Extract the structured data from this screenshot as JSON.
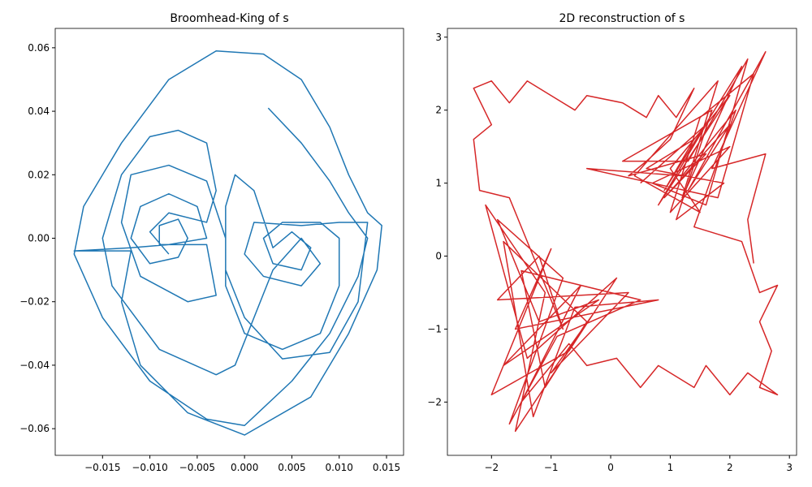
{
  "chart_data": [
    {
      "type": "line",
      "title": "Broomhead-King of s",
      "color": "#1f77b4",
      "grid": false,
      "xlim": [
        -0.02,
        0.0168
      ],
      "ylim": [
        -0.0684,
        0.0661
      ],
      "xticks": [
        {
          "value": -0.015,
          "label": "−0.015"
        },
        {
          "value": -0.01,
          "label": "−0.010"
        },
        {
          "value": -0.005,
          "label": "−0.005"
        },
        {
          "value": 0,
          "label": "0.000"
        },
        {
          "value": 0.005,
          "label": "0.005"
        },
        {
          "value": 0.01,
          "label": "0.010"
        },
        {
          "value": 0.015,
          "label": "0.015"
        }
      ],
      "yticks": [
        {
          "value": -0.06,
          "label": "−0.06"
        },
        {
          "value": -0.04,
          "label": "−0.04"
        },
        {
          "value": -0.02,
          "label": "−0.02"
        },
        {
          "value": 0,
          "label": "0.00"
        },
        {
          "value": 0.02,
          "label": "0.02"
        },
        {
          "value": 0.04,
          "label": "0.04"
        },
        {
          "value": 0.06,
          "label": "0.06"
        }
      ],
      "x": [
        0.0025,
        0.006,
        0.009,
        0.011,
        0.013,
        0.012,
        0.009,
        0.005,
        0.0,
        -0.004,
        -0.01,
        -0.015,
        -0.018,
        -0.017,
        -0.013,
        -0.008,
        -0.003,
        0.002,
        0.006,
        0.009,
        0.011,
        0.013,
        0.0145,
        0.014,
        0.011,
        0.007,
        0.0,
        -0.006,
        -0.011,
        -0.013,
        -0.012,
        -0.018,
        -0.012,
        -0.008,
        -0.004,
        -0.005,
        -0.008,
        -0.011,
        -0.012,
        -0.01,
        -0.007,
        -0.006,
        -0.007,
        -0.009,
        -0.009,
        -0.004,
        -0.003,
        -0.006,
        -0.011,
        -0.013,
        -0.012,
        -0.008,
        -0.004,
        -0.002,
        -0.002,
        0.0,
        0.004,
        0.008,
        0.01,
        0.01,
        0.008,
        0.004,
        0.002,
        0.003,
        0.006,
        0.007,
        0.005,
        0.003,
        0.001,
        -0.001,
        -0.002,
        -0.002,
        0.0,
        0.004,
        0.009,
        0.012,
        0.013,
        0.01,
        0.006,
        0.001,
        0.0,
        0.002,
        0.006,
        0.008,
        0.006,
        0.003,
        -0.001,
        -0.003,
        -0.009,
        -0.014,
        -0.015,
        -0.013,
        -0.01,
        -0.007,
        -0.004,
        -0.003,
        -0.004,
        -0.008,
        -0.01,
        -0.008
      ],
      "values": [
        0.041,
        0.03,
        0.018,
        0.008,
        0.0,
        -0.012,
        -0.03,
        -0.045,
        -0.059,
        -0.057,
        -0.045,
        -0.025,
        -0.005,
        0.01,
        0.03,
        0.05,
        0.059,
        0.058,
        0.05,
        0.035,
        0.02,
        0.008,
        0.004,
        -0.01,
        -0.03,
        -0.05,
        -0.062,
        -0.055,
        -0.04,
        -0.02,
        -0.004,
        -0.004,
        -0.003,
        -0.002,
        0.0,
        0.01,
        0.014,
        0.01,
        0.0,
        -0.008,
        -0.006,
        0.0,
        0.006,
        0.004,
        -0.002,
        -0.002,
        -0.018,
        -0.02,
        -0.012,
        0.005,
        0.02,
        0.023,
        0.018,
        0.0,
        -0.015,
        -0.03,
        -0.035,
        -0.03,
        -0.015,
        0.0,
        0.005,
        0.005,
        0.0,
        -0.008,
        -0.01,
        -0.003,
        0.002,
        -0.003,
        0.015,
        0.02,
        0.01,
        -0.01,
        -0.025,
        -0.038,
        -0.036,
        -0.02,
        0.005,
        0.005,
        0.004,
        0.005,
        -0.005,
        -0.012,
        -0.015,
        -0.008,
        0.0,
        -0.01,
        -0.04,
        -0.043,
        -0.035,
        -0.015,
        0.0,
        0.02,
        0.032,
        0.034,
        0.03,
        0.015,
        0.005,
        0.008,
        0.002,
        -0.005
      ]
    },
    {
      "type": "line",
      "title": "2D reconstruction of s",
      "color": "#d62728",
      "grid": false,
      "xlim": [
        -2.74,
        3.12
      ],
      "ylim": [
        -2.73,
        3.12
      ],
      "xticks": [
        {
          "value": -2,
          "label": "−2"
        },
        {
          "value": -1,
          "label": "−1"
        },
        0,
        1,
        2,
        3
      ],
      "yticks": [
        {
          "value": -2,
          "label": "−2"
        },
        {
          "value": -1,
          "label": "−1"
        },
        0,
        1,
        2,
        3
      ],
      "x": [
        0.5,
        1.6,
        0.8,
        2.0,
        1.0,
        1.5,
        0.4,
        1.8,
        1.2,
        2.2,
        0.9,
        1.4,
        0.6,
        1.9,
        1.1,
        1.7,
        0.2,
        1.3,
        2.3,
        1.6,
        0.7,
        2.0,
        1.0,
        1.5,
        2.4,
        1.8,
        -0.4,
        1.2,
        2.1,
        1.4,
        2.2,
        2.5,
        2.8,
        2.5,
        2.7,
        2.5,
        2.8,
        2.3,
        2.0,
        1.6,
        1.4,
        0.8,
        0.5,
        0.1,
        -0.4,
        -0.7,
        -1.5,
        -0.5,
        -1.8,
        -0.2,
        -1.2,
        -1.9,
        -0.8,
        -1.7,
        -0.9,
        0.5,
        -1.5,
        -1.1,
        -0.4,
        -1.8,
        -1.3,
        -0.6,
        0.8,
        -1.6,
        -1.0,
        -2.0,
        -0.7,
        0.1,
        -1.4,
        -2.1,
        -1.1,
        -1.6,
        -0.3,
        -1.0,
        0.3,
        -1.9,
        -1.2,
        -0.8,
        -1.7,
        -2.2,
        -2.3,
        -2.0,
        -2.3,
        -2.0,
        -1.7,
        -1.4,
        -1.0,
        -0.6,
        -0.4,
        0.2,
        0.6,
        0.8,
        1.1,
        1.4,
        1.0,
        0.6,
        0.3,
        1.6,
        0.9,
        2.0,
        1.3,
        2.6,
        1.7,
        2.6,
        2.3,
        2.4
      ],
      "values": [
        1.0,
        1.8,
        0.7,
        2.2,
        1.2,
        0.6,
        1.1,
        2.4,
        0.8,
        2.6,
        0.9,
        1.6,
        1.2,
        1.0,
        0.5,
        2.0,
        1.3,
        1.3,
        2.7,
        0.7,
        1.0,
        1.5,
        0.6,
        1.9,
        2.5,
        0.8,
        1.2,
        1.1,
        2.0,
        0.4,
        0.2,
        -0.5,
        -0.4,
        -0.9,
        -1.3,
        -1.8,
        -1.9,
        -1.6,
        -1.9,
        -1.5,
        -1.8,
        -1.5,
        -1.8,
        -1.4,
        -1.5,
        -1.2,
        -2.0,
        -0.4,
        -1.5,
        -0.6,
        -0.9,
        0.5,
        -0.3,
        -2.3,
        -1.1,
        -0.6,
        -0.2,
        -1.8,
        -0.9,
        0.2,
        -2.2,
        -0.7,
        -0.6,
        -1.0,
        0.1,
        -1.9,
        -1.3,
        -0.3,
        -1.4,
        0.7,
        -0.5,
        -2.4,
        -0.8,
        -1.6,
        -0.5,
        -0.6,
        0.0,
        -1.0,
        0.8,
        0.9,
        1.6,
        1.8,
        2.3,
        2.4,
        2.1,
        2.4,
        2.2,
        2.0,
        2.2,
        2.1,
        1.9,
        2.2,
        1.9,
        2.3,
        1.6,
        1.3,
        1.1,
        1.4,
        0.8,
        1.8,
        0.9,
        2.8,
        1.2,
        1.4,
        0.5,
        -0.1
      ]
    }
  ]
}
